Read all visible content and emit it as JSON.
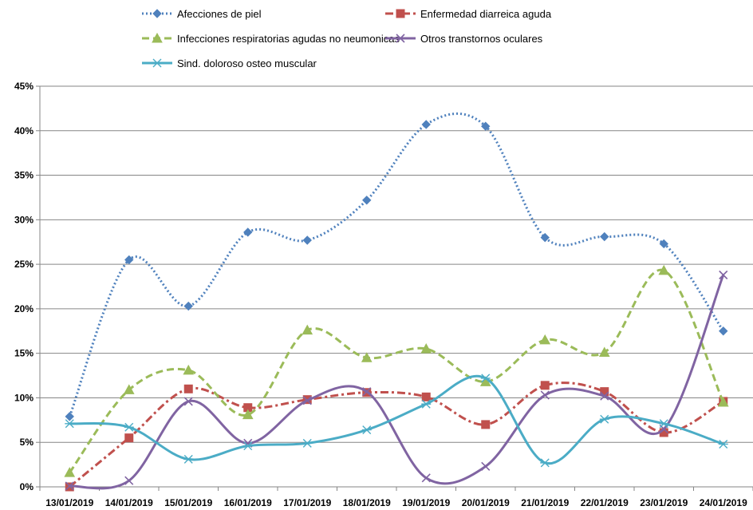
{
  "chart_data": {
    "type": "line",
    "title": "",
    "xlabel": "",
    "ylabel": "",
    "categories": [
      "13/01/2019",
      "14/01/2019",
      "15/01/2019",
      "16/01/2019",
      "17/01/2019",
      "18/01/2019",
      "19/01/2019",
      "20/01/2019",
      "21/01/2019",
      "22/01/2019",
      "23/01/2019",
      "24/01/2019"
    ],
    "ylim": [
      0,
      45
    ],
    "yticks": [
      "0%",
      "5%",
      "10%",
      "15%",
      "20%",
      "25%",
      "30%",
      "35%",
      "40%",
      "45%"
    ],
    "grid": true,
    "legend_position": "top",
    "series": [
      {
        "name": "Afecciones de piel",
        "color": "#4F81BD",
        "line_style": "dotted",
        "marker": "diamond",
        "smooth": true,
        "values": [
          7.9,
          25.5,
          20.3,
          28.6,
          27.7,
          32.2,
          40.7,
          40.5,
          28.0,
          28.1,
          27.3,
          17.5
        ]
      },
      {
        "name": "Enfermedad diarreica aguda",
        "color": "#C0504D",
        "line_style": "dash-dot",
        "marker": "square",
        "smooth": true,
        "values": [
          0.0,
          5.5,
          11.0,
          8.9,
          9.8,
          10.6,
          10.1,
          7.0,
          11.4,
          10.7,
          6.1,
          9.6
        ]
      },
      {
        "name": "Infecciones respiratorias agudas no neumonicas",
        "color": "#9BBB59",
        "line_style": "dashed",
        "marker": "triangle",
        "smooth": true,
        "values": [
          1.6,
          10.9,
          13.1,
          8.1,
          17.6,
          14.5,
          15.5,
          11.8,
          16.5,
          15.1,
          24.3,
          9.5
        ]
      },
      {
        "name": "Otros transtornos oculares",
        "color": "#8064A2",
        "line_style": "solid",
        "marker": "x",
        "smooth": true,
        "values": [
          0.1,
          0.7,
          9.6,
          4.9,
          9.7,
          10.7,
          1.0,
          2.3,
          10.3,
          10.2,
          6.5,
          23.8
        ]
      },
      {
        "name": "Sind. doloroso osteo muscular",
        "color": "#4BACC6",
        "line_style": "solid",
        "marker": "asterisk",
        "smooth": true,
        "values": [
          7.1,
          6.7,
          3.1,
          4.6,
          4.9,
          6.4,
          9.3,
          12.2,
          2.7,
          7.6,
          7.1,
          4.8
        ]
      }
    ]
  }
}
